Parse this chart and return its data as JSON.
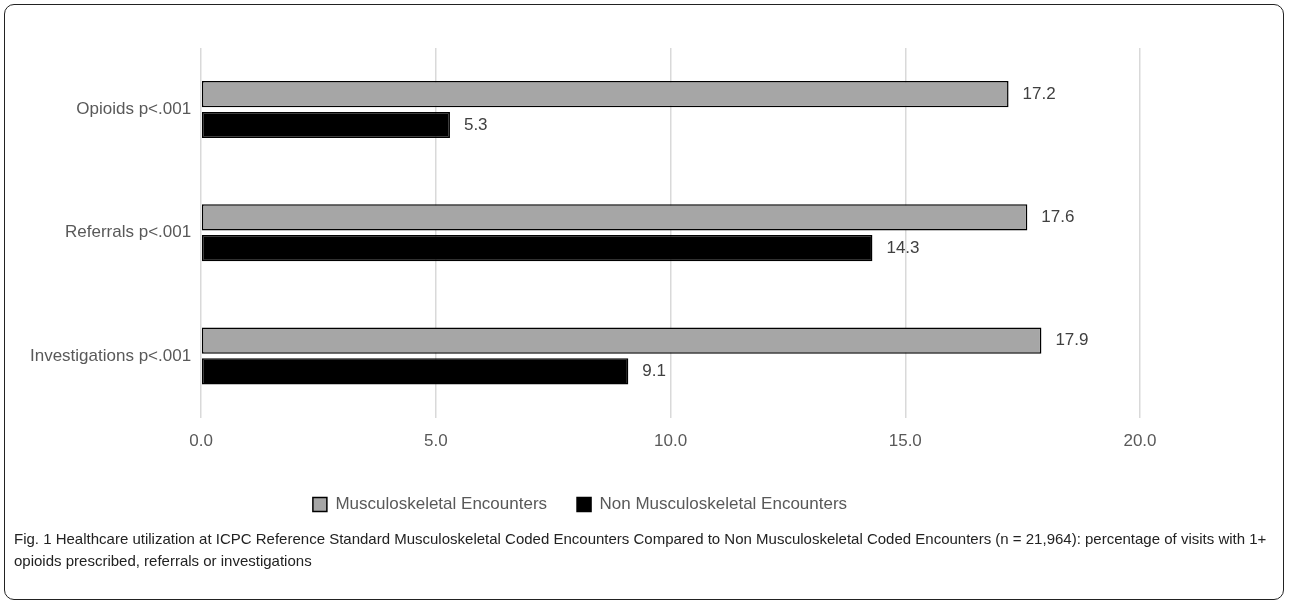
{
  "chart_data": {
    "type": "bar",
    "orientation": "horizontal",
    "categories": [
      "Opioids p<.001",
      "Referrals p<.001",
      "Investigations p<.001"
    ],
    "series": [
      {
        "name": "Musculoskeletal Encounters",
        "color": "#a6a6a6",
        "values": [
          17.2,
          17.6,
          17.9
        ]
      },
      {
        "name": "Non Musculoskeletal Encounters",
        "color": "#000000",
        "values": [
          5.3,
          14.3,
          9.1
        ]
      }
    ],
    "xlim": [
      0,
      20
    ],
    "xticks": [
      {
        "value": 0,
        "label": "0.0"
      },
      {
        "value": 5,
        "label": "5.0"
      },
      {
        "value": 10,
        "label": "10.0"
      },
      {
        "value": 15,
        "label": "15.0"
      },
      {
        "value": 20,
        "label": "20.0"
      }
    ],
    "grid": "x",
    "legend": "bottom",
    "data_labels": true,
    "annotations": [
      "Fig. 1 Healthcare utilization at ICPC Reference Standard Musculoskeletal Coded Encounters Compared to Non Musculoskeletal Coded Encounters (n = 21,964): percentage of visits with 1+ opioids prescribed, referrals or investigations"
    ]
  }
}
